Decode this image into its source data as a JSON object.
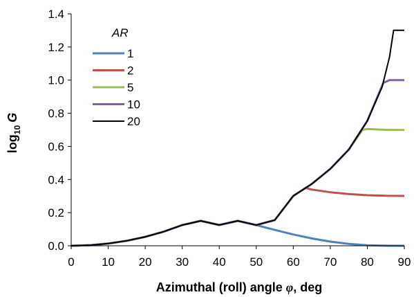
{
  "chart_data": {
    "type": "line",
    "xlabel": "Azimuthal (roll) angle φ, deg",
    "ylabel": "log10 G",
    "xlim": [
      0,
      90
    ],
    "ylim": [
      0,
      1.4
    ],
    "x_ticks": [
      0,
      10,
      20,
      30,
      40,
      50,
      60,
      70,
      80,
      90
    ],
    "y_ticks": [
      "0.0",
      "0.2",
      "0.4",
      "0.6",
      "0.8",
      "1.0",
      "1.2",
      "1.4"
    ],
    "grid": false,
    "legend": {
      "title": "AR",
      "position": "top-left"
    },
    "series": [
      {
        "name": "1",
        "color": "#4f81bd",
        "x": [
          0,
          5,
          10,
          15,
          20,
          25,
          30,
          35,
          40,
          45,
          50,
          55,
          60,
          65,
          70,
          75,
          80,
          85,
          90
        ],
        "y": [
          0,
          0.0033,
          0.0133,
          0.0301,
          0.054,
          0.0851,
          0.1249,
          0.1505,
          0.1255,
          0.1505,
          0.1249,
          0.0958,
          0.068,
          0.0442,
          0.0251,
          0.0113,
          0.0029,
          0.0003,
          0
        ]
      },
      {
        "name": "2",
        "color": "#c0504d",
        "x": [
          0,
          5,
          10,
          15,
          20,
          25,
          30,
          35,
          40,
          45,
          50,
          55,
          60,
          63.4,
          65,
          70,
          75,
          80,
          85,
          90
        ],
        "y": [
          0,
          0.0033,
          0.0133,
          0.0301,
          0.054,
          0.0851,
          0.1249,
          0.1505,
          0.1255,
          0.1505,
          0.1249,
          0.1549,
          0.301,
          0.3495,
          0.3394,
          0.323,
          0.312,
          0.3051,
          0.3017,
          0.301
        ]
      },
      {
        "name": "5",
        "color": "#9bbb59",
        "x": [
          0,
          5,
          10,
          15,
          20,
          25,
          30,
          35,
          40,
          45,
          50,
          55,
          60,
          65,
          70,
          75,
          78.7,
          80,
          85,
          90
        ],
        "y": [
          0,
          0.0033,
          0.0133,
          0.0301,
          0.054,
          0.0851,
          0.1249,
          0.1505,
          0.1255,
          0.1505,
          0.1249,
          0.1549,
          0.301,
          0.3734,
          0.4643,
          0.5809,
          0.699,
          0.7047,
          0.6998,
          0.699
        ]
      },
      {
        "name": "10",
        "color": "#8064a2",
        "x": [
          0,
          5,
          10,
          15,
          20,
          25,
          30,
          35,
          40,
          45,
          50,
          55,
          60,
          65,
          70,
          75,
          80,
          84.3,
          86,
          88,
          90
        ],
        "y": [
          0,
          0.0033,
          0.0133,
          0.0301,
          0.054,
          0.0851,
          0.1249,
          0.1505,
          0.1255,
          0.1505,
          0.1249,
          0.1549,
          0.301,
          0.3734,
          0.4643,
          0.5809,
          0.7533,
          0.983,
          1.0,
          1.0,
          1.0
        ]
      },
      {
        "name": "20",
        "color": "#000000",
        "x": [
          0,
          5,
          10,
          15,
          20,
          25,
          30,
          35,
          40,
          45,
          50,
          55,
          60,
          65,
          70,
          75,
          80,
          84,
          86,
          87.1,
          88,
          90
        ],
        "y": [
          0,
          0.0033,
          0.0133,
          0.0301,
          0.054,
          0.0851,
          0.1249,
          0.1505,
          0.1255,
          0.1505,
          0.1249,
          0.1549,
          0.301,
          0.3734,
          0.4643,
          0.5809,
          0.7533,
          0.9588,
          1.1402,
          1.301,
          1.301,
          1.301
        ]
      }
    ]
  }
}
